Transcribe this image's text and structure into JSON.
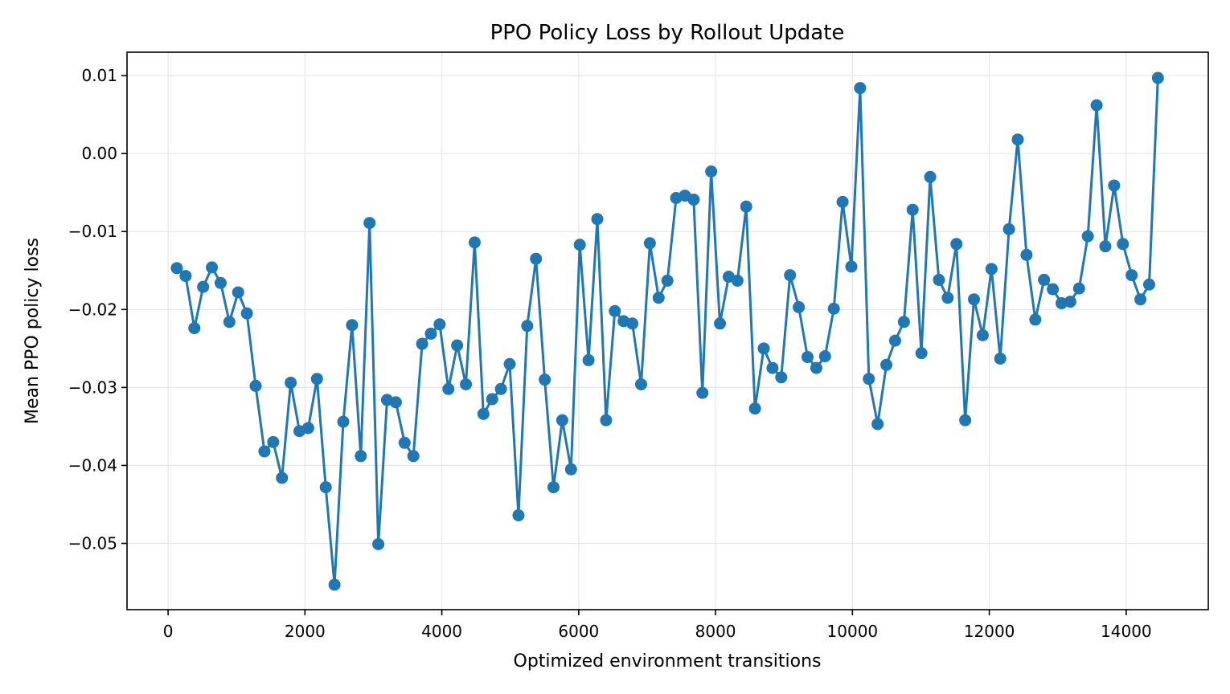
{
  "chart_data": {
    "type": "line",
    "title": "PPO Policy Loss by Rollout Update",
    "xlabel": "Optimized environment transitions",
    "ylabel": "Mean PPO policy loss",
    "xlim": [
      -600,
      15200
    ],
    "ylim": [
      -0.0585,
      0.013
    ],
    "xticks": [
      0,
      2000,
      4000,
      6000,
      8000,
      10000,
      12000,
      14000
    ],
    "xtick_labels": [
      "0",
      "2000",
      "4000",
      "6000",
      "8000",
      "10000",
      "12000",
      "14000"
    ],
    "yticks": [
      0.01,
      0.0,
      -0.01,
      -0.02,
      -0.03,
      -0.04,
      -0.05
    ],
    "ytick_labels": [
      "0.01",
      "0.00",
      "−0.01",
      "−0.02",
      "−0.03",
      "−0.04",
      "−0.05"
    ],
    "grid": true,
    "color": "#1f77b4",
    "series": [
      {
        "x": [
          128,
          256,
          384,
          512,
          640,
          768,
          896,
          1024,
          1152,
          1280,
          1408,
          1536,
          1664,
          1792,
          1920,
          2048,
          2176,
          2304,
          2432,
          2560,
          2688,
          2816,
          2944,
          3072,
          3200,
          3328,
          3456,
          3584,
          3712,
          3840,
          3968,
          4096,
          4224,
          4352,
          4480,
          4608,
          4736,
          4864,
          4992,
          5120,
          5248,
          5376,
          5504,
          5632,
          5760,
          5888,
          6016,
          6144,
          6272,
          6400,
          6528,
          6656,
          6784,
          6912,
          7040,
          7168,
          7296,
          7424,
          7552,
          7680,
          7808,
          7936,
          8064,
          8192,
          8320,
          8448,
          8576,
          8704,
          8832,
          8960,
          9088,
          9216,
          9344,
          9472,
          9600,
          9728,
          9856,
          9984,
          10112,
          10240,
          10368,
          10496,
          10624,
          10752,
          10880,
          11008,
          11136,
          11264,
          11392,
          11520,
          11648,
          11776,
          11904,
          12032,
          12160,
          12288,
          12416,
          12544,
          12672,
          12800,
          12928,
          13056,
          13184,
          13312,
          13440,
          13568,
          13696,
          13824,
          13952,
          14080,
          14208,
          14336,
          14464
        ],
        "y": [
          -0.0147,
          -0.0157,
          -0.0224,
          -0.0171,
          -0.0146,
          -0.0166,
          -0.0216,
          -0.0178,
          -0.0205,
          -0.0298,
          -0.0382,
          -0.037,
          -0.0416,
          -0.0294,
          -0.0356,
          -0.0352,
          -0.0289,
          -0.0428,
          -0.0553,
          -0.0344,
          -0.022,
          -0.0388,
          -0.0089,
          -0.0501,
          -0.0316,
          -0.0319,
          -0.0371,
          -0.0388,
          -0.0244,
          -0.0231,
          -0.0219,
          -0.0302,
          -0.0246,
          -0.0296,
          -0.0114,
          -0.0334,
          -0.0315,
          -0.0302,
          -0.027,
          -0.0464,
          -0.0221,
          -0.0135,
          -0.029,
          -0.0428,
          -0.0342,
          -0.0405,
          -0.0117,
          -0.0265,
          -0.0084,
          -0.0342,
          -0.0202,
          -0.0215,
          -0.0218,
          -0.0296,
          -0.0115,
          -0.0185,
          -0.0163,
          -0.0057,
          -0.0054,
          -0.0059,
          -0.0307,
          -0.0023,
          -0.0218,
          -0.0158,
          -0.0163,
          -0.0068,
          -0.0327,
          -0.025,
          -0.0275,
          -0.0287,
          -0.0156,
          -0.0197,
          -0.0261,
          -0.0275,
          -0.026,
          -0.0199,
          -0.0062,
          -0.0145,
          0.0084,
          -0.0289,
          -0.0347,
          -0.0271,
          -0.024,
          -0.0216,
          -0.0072,
          -0.0256,
          -0.003,
          -0.0162,
          -0.0185,
          -0.0116,
          -0.0342,
          -0.0187,
          -0.0233,
          -0.0148,
          -0.0263,
          -0.0097,
          0.0018,
          -0.013,
          -0.0213,
          -0.0162,
          -0.0174,
          -0.0192,
          -0.019,
          -0.0173,
          -0.0106,
          0.0062,
          -0.0119,
          -0.0041,
          -0.0116,
          -0.0156,
          -0.0187,
          -0.0168,
          0.0097
        ]
      }
    ]
  }
}
